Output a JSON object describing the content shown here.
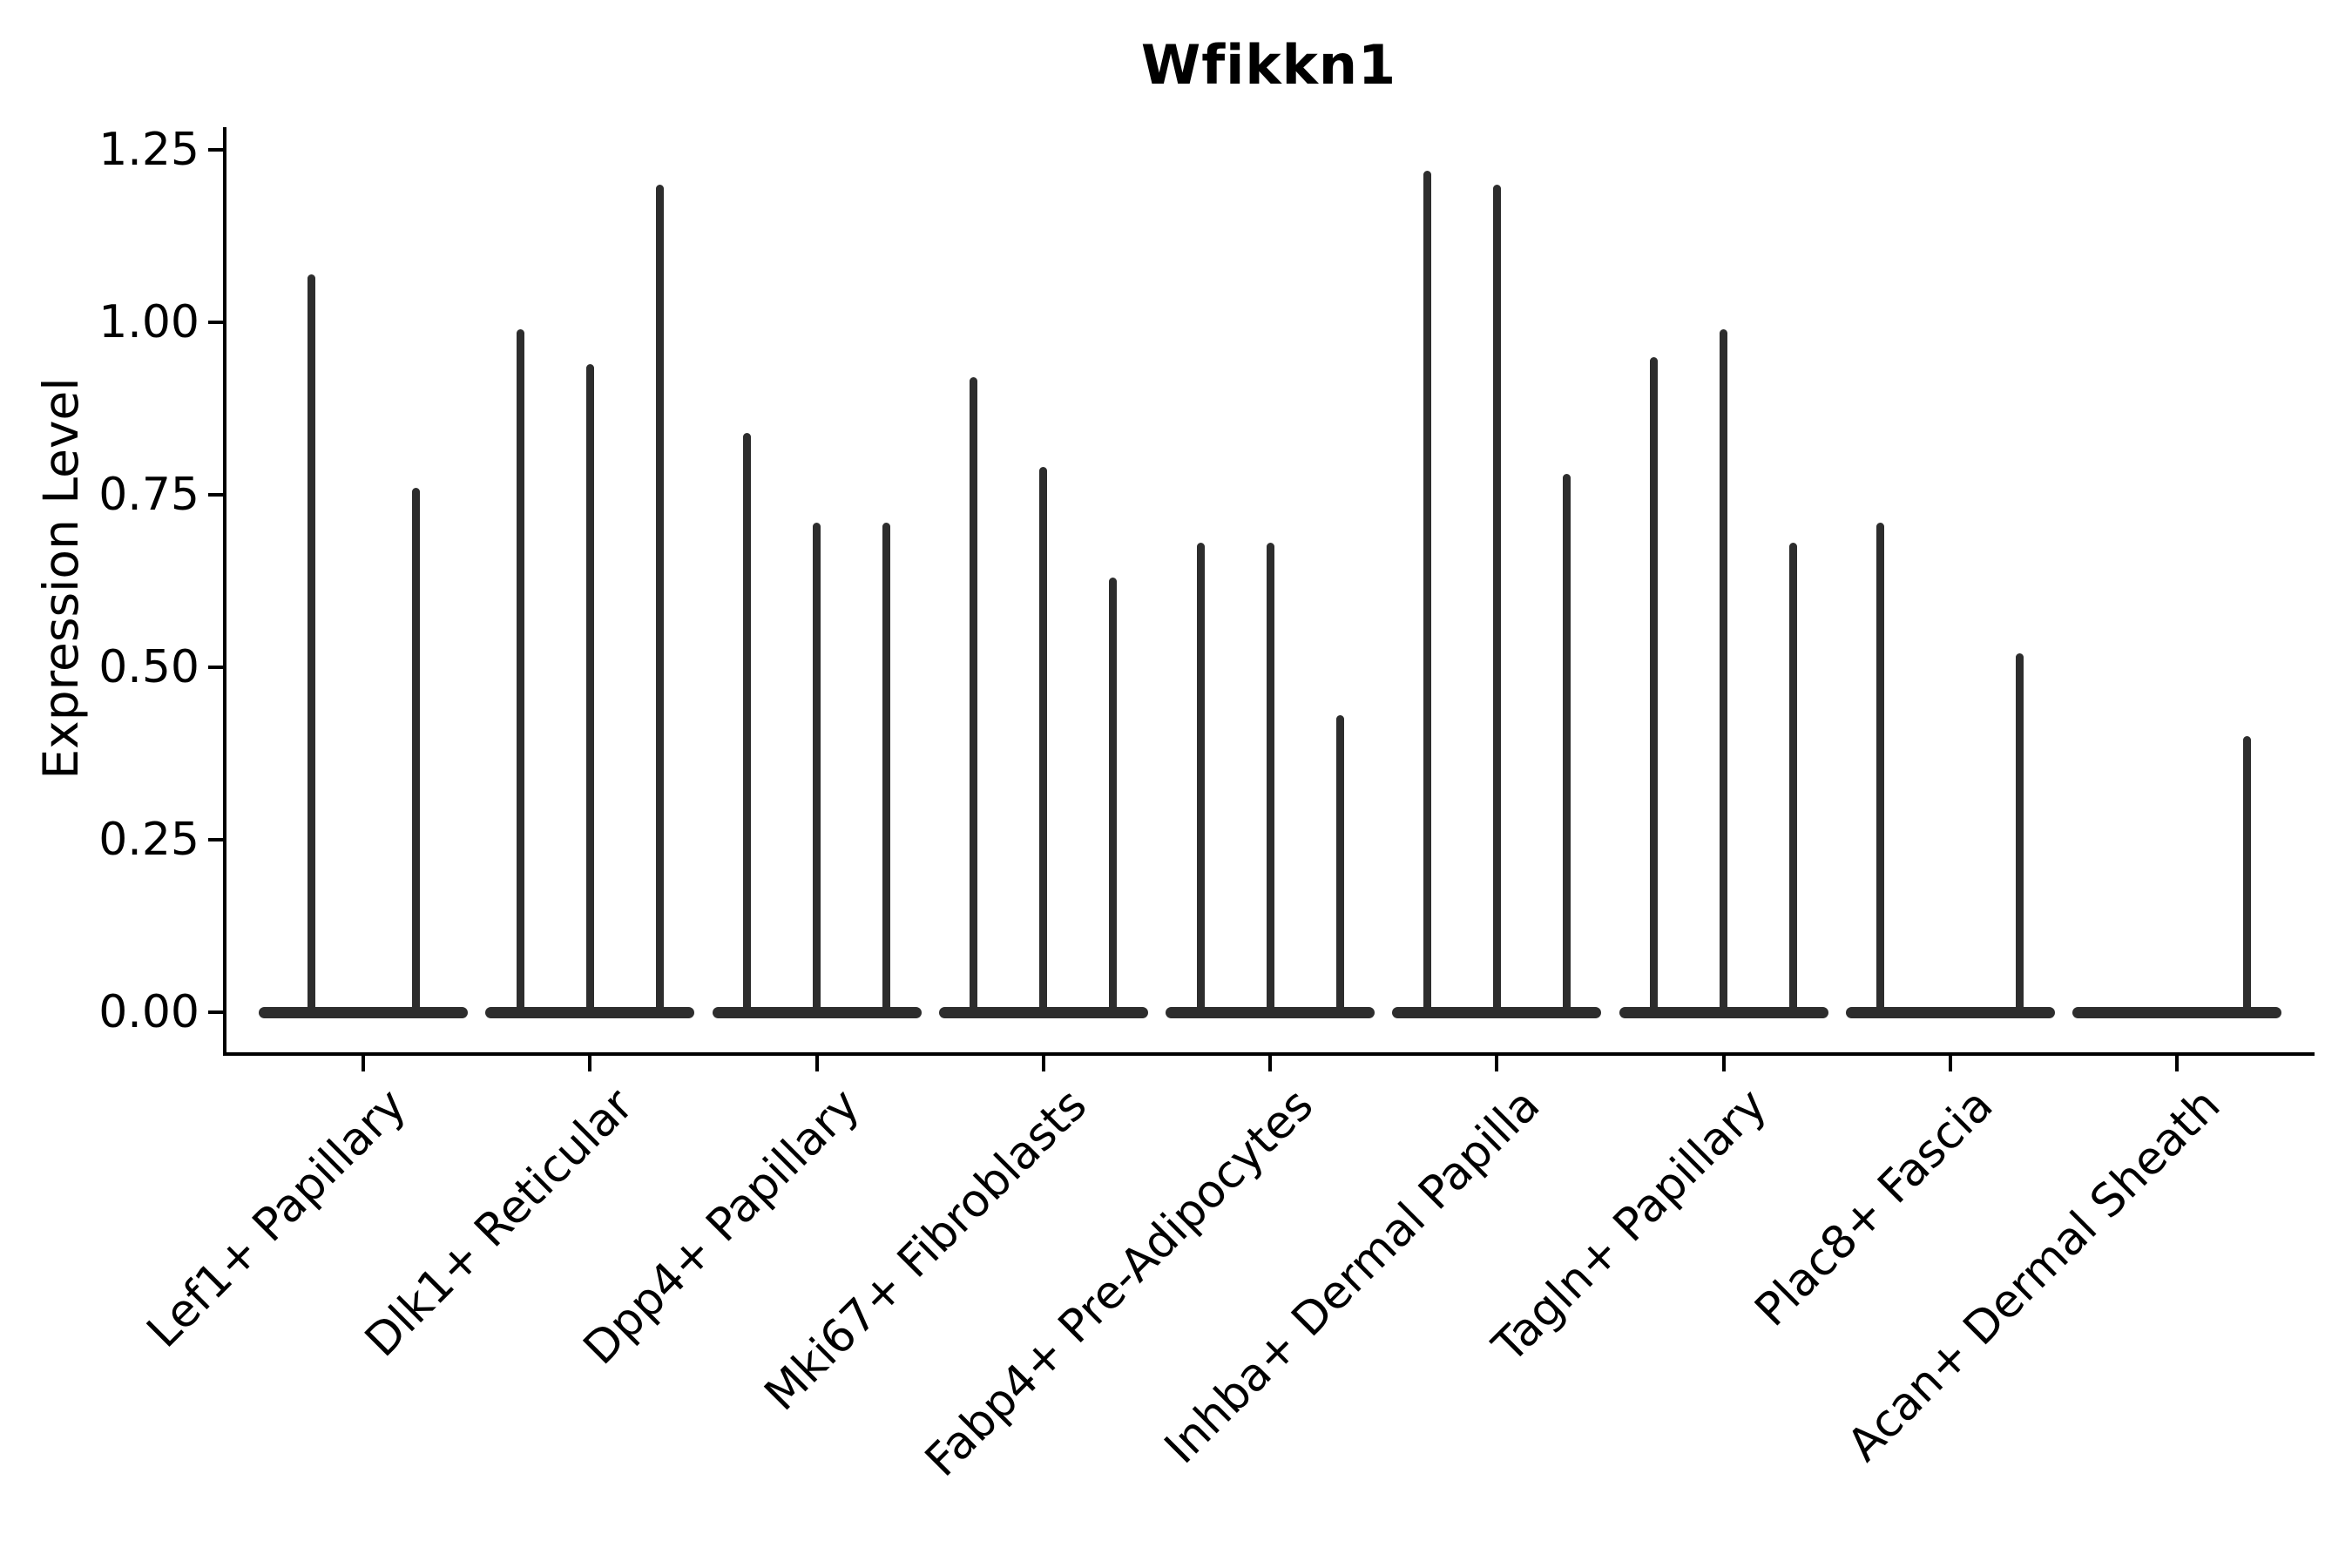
{
  "figure": {
    "background": "#ffffff"
  },
  "chart_data": {
    "type": "violin",
    "title": "Wfikkn1",
    "ylabel": "Expression Level",
    "xlabel": "",
    "ylim": [
      -0.06,
      1.28
    ],
    "yticks": [
      "0.00",
      "0.25",
      "0.50",
      "0.75",
      "1.00",
      "1.25"
    ],
    "grid": false,
    "legend_position": "none",
    "xtick_rotation": 45,
    "categories": [
      "Lef1+ Papillary",
      "Dlk1+ Reticular",
      "Dpp4+ Papillary",
      "Mki67+ Fibroblasts",
      "Fabp4+ Pre-Adipocytes",
      "Inhba+ Dermal Papilla",
      "Tagln+ Papillary",
      "Plac8+ Fascia",
      "Acan+ Dermal Sheath"
    ],
    "groups": [
      {
        "category": "Lef1+ Papillary",
        "violin_max_expression": [
          1.07,
          0.76
        ]
      },
      {
        "category": "Dlk1+ Reticular",
        "violin_max_expression": [
          0.99,
          0.94,
          1.2
        ]
      },
      {
        "category": "Dpp4+ Papillary",
        "violin_max_expression": [
          0.84,
          0.71,
          0.71
        ]
      },
      {
        "category": "Mki67+ Fibroblasts",
        "violin_max_expression": [
          0.92,
          0.79,
          0.63
        ]
      },
      {
        "category": "Fabp4+ Pre-Adipocytes",
        "violin_max_expression": [
          0.68,
          0.68,
          0.43
        ]
      },
      {
        "category": "Inhba+ Dermal Papilla",
        "violin_max_expression": [
          1.22,
          1.2,
          0.78
        ]
      },
      {
        "category": "Tagln+ Papillary",
        "violin_max_expression": [
          0.95,
          0.99,
          0.68
        ]
      },
      {
        "category": "Plac8+ Fascia",
        "violin_max_expression": [
          0.71,
          0.0,
          0.52
        ]
      },
      {
        "category": "Acan+ Dermal Sheath",
        "violin_max_expression": [
          0.0,
          0.0,
          0.4
        ]
      }
    ],
    "colors": {
      "violin": "#2d2d2d",
      "axis": "#000000",
      "text": "#000000"
    }
  }
}
